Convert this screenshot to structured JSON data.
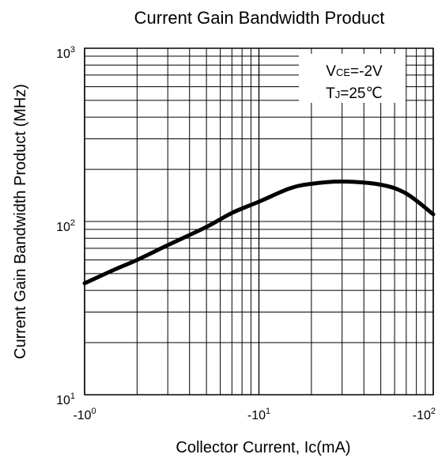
{
  "chart_data": {
    "type": "line",
    "title": "Current Gain Bandwidth Product",
    "xlabel": "Collector Current, Ic(mA)",
    "ylabel": "Current Gain Bandwidth Product (MHz)",
    "x_scale": "log",
    "y_scale": "log",
    "xlim": [
      1,
      100
    ],
    "ylim": [
      10,
      1000
    ],
    "grid": true,
    "x_ticks": [
      {
        "value": 1,
        "base": "-10",
        "exp": "0"
      },
      {
        "value": 10,
        "base": "-10",
        "exp": "1"
      },
      {
        "value": 100,
        "base": "-10",
        "exp": "2"
      }
    ],
    "y_ticks": [
      {
        "value": 10,
        "base": "10",
        "exp": "1"
      },
      {
        "value": 100,
        "base": "10",
        "exp": "2"
      },
      {
        "value": 1000,
        "base": "10",
        "exp": "3"
      }
    ],
    "annotations": {
      "vce": {
        "main1": "V",
        "sub1": "CE",
        "main2": "=-2V"
      },
      "tj": {
        "main1": "T",
        "sub1": "J",
        "main2": "=25℃"
      }
    },
    "series": [
      {
        "x": [
          1,
          1.5,
          2,
          3,
          5,
          7,
          10,
          15,
          20,
          30,
          50,
          70,
          100
        ],
        "y": [
          44,
          53,
          60,
          73,
          93,
          112,
          130,
          155,
          165,
          170,
          163,
          145,
          110
        ]
      }
    ]
  }
}
